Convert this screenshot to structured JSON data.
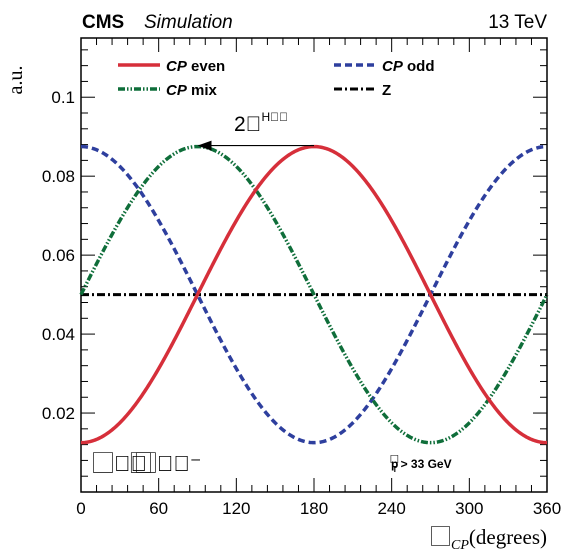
{
  "header": {
    "experiment": "CMS",
    "subtitle": "Simulation",
    "energy": "13 TeV"
  },
  "annotations": {
    "arrow_label": "2⃞",
    "arrow_label_sup": "H⃞⃞",
    "decay_label": "⃞⁺⃞ ⃞ ⃞⁺⃞⁻",
    "pt_cut": "p",
    "pt_cut_sup": "⃞",
    "pt_cut_sub": "T",
    "pt_cut_rest": " > 33 GeV"
  },
  "chart_data": {
    "type": "line",
    "title": "",
    "xlabel_main": "⃞",
    "xlabel_sub": "CP",
    "xlabel_unit": "(degrees)",
    "ylabel": "a.u.",
    "xlim": [
      0,
      360
    ],
    "ylim": [
      0,
      0.115
    ],
    "x_ticks": [
      0,
      60,
      120,
      180,
      240,
      300,
      360
    ],
    "x_tick_labels": [
      "0",
      "60",
      "120",
      "180",
      "240",
      "300",
      "360"
    ],
    "y_ticks": [
      0.02,
      0.04,
      0.06,
      0.08,
      0.1
    ],
    "y_tick_labels": [
      "0.02",
      "0.04",
      "0.06",
      "0.08",
      "0.1"
    ],
    "grid": false,
    "legend_position": "top",
    "series": [
      {
        "name": "CP even",
        "name_italic": "CP",
        "name_rest": " even",
        "color": "#d62f3a",
        "style": "solid",
        "mean": 0.05,
        "amplitude": 0.0375,
        "phase_deg": 180
      },
      {
        "name": "CP odd",
        "name_italic": "CP",
        "name_rest": " odd",
        "color": "#2e3f9e",
        "style": "dashed",
        "mean": 0.05,
        "amplitude": 0.0375,
        "phase_deg": 0
      },
      {
        "name": "CP mix",
        "name_italic": "CP",
        "name_rest": " mix",
        "color": "#0f6e3a",
        "style": "dashdotdot",
        "mean": 0.05,
        "amplitude": 0.0375,
        "phase_deg": 90
      },
      {
        "name": "Z",
        "name_italic": "",
        "name_rest": "Z",
        "color": "#000000",
        "style": "dashdot",
        "mean": 0.05,
        "amplitude": 0.0,
        "phase_deg": 0
      }
    ],
    "arrow": {
      "x_from": 180,
      "x_to": 90,
      "y": 0.0875
    }
  }
}
